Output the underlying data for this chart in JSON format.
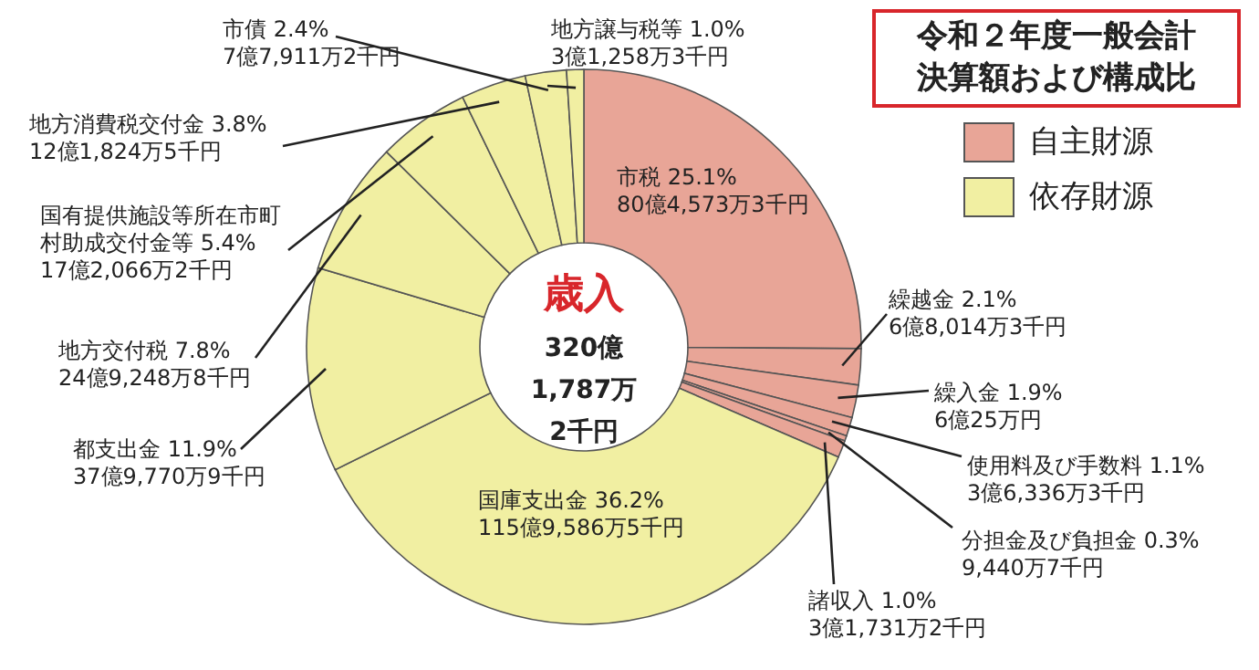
{
  "chart_data": {
    "type": "donut",
    "title": "令和２年度一般会計決算額および構成比",
    "categories": [
      "市税",
      "繰越金",
      "繰入金",
      "使用料及び手数料",
      "分担金及び負担金",
      "諸収入",
      "国庫支出金",
      "都支出金",
      "地方交付税",
      "国有提供施設等所在市町村助成交付金等",
      "地方消費税交付金",
      "市債",
      "地方譲与税等"
    ],
    "values": [
      25.1,
      2.1,
      1.9,
      1.1,
      0.3,
      1.0,
      36.2,
      11.9,
      7.8,
      5.4,
      3.8,
      2.4,
      1.0
    ],
    "colors": [
      "#e8a597",
      "#e8a597",
      "#e8a597",
      "#e8a597",
      "#e8a597",
      "#e8a597",
      "#f1efa2",
      "#f1efa2",
      "#f1efa2",
      "#f1efa2",
      "#f1efa2",
      "#f1efa2",
      "#f1efa2"
    ],
    "value_labels": [
      "25.1%",
      "2.1%",
      "1.9%",
      "1.1%",
      "0.3%",
      "1.0%",
      "36.2%",
      "11.9%",
      "7.8%",
      "5.4%",
      "3.8%",
      "2.4%",
      "1.0%"
    ],
    "annotations": [
      {
        "text": "80億4,573万3千円",
        "x": "市税"
      },
      {
        "text": "6億8,014万3千円",
        "x": "繰越金"
      },
      {
        "text": "6億25万円",
        "x": "繰入金"
      },
      {
        "text": "3億6,336万3千円",
        "x": "使用料及び手数料"
      },
      {
        "text": "9,440万7千円",
        "x": "分担金及び負担金"
      },
      {
        "text": "3億1,731万2千円",
        "x": "諸収入"
      },
      {
        "text": "115億9,586万5千円",
        "x": "国庫支出金"
      },
      {
        "text": "37億9,770万9千円",
        "x": "都支出金"
      },
      {
        "text": "24億9,248万8千円",
        "x": "地方交付税"
      },
      {
        "text": "17億2,066万2千円",
        "x": "国有提供施設等所在市町村助成交付金等"
      },
      {
        "text": "12億1,824万5千円",
        "x": "地方消費税交付金"
      },
      {
        "text": "7億7,911万2千円",
        "x": "市債"
      },
      {
        "text": "3億1,258万3千円",
        "x": "地方譲与税等"
      },
      "歳入",
      "320億",
      "1,787万",
      "2千円",
      "自主財源",
      "依存財源"
    ]
  }
}
